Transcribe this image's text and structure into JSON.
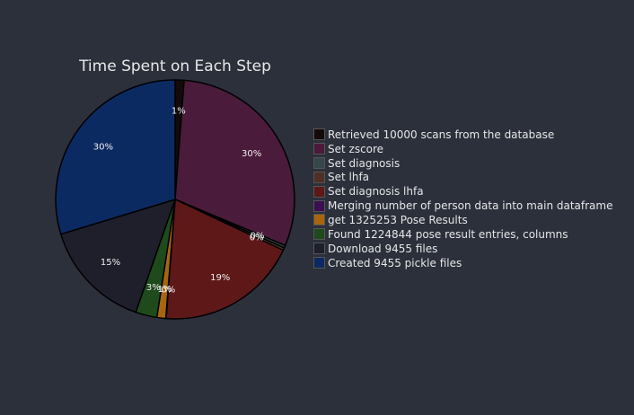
{
  "chart_data": {
    "type": "pie",
    "title": "Time Spent on Each Step",
    "slices": [
      {
        "label": "Retrieved 10000 scans from the database",
        "value": 1.2,
        "display": "1%",
        "color": "#140a0a"
      },
      {
        "label": "Set zscore",
        "value": 30.1,
        "display": "30%",
        "color": "#4a1b3a"
      },
      {
        "label": "Set diagnosis",
        "value": 0.35,
        "display": "0%",
        "color": "#34474a"
      },
      {
        "label": "Set lhfa",
        "value": 0.35,
        "display": "0%",
        "color": "#4e3025"
      },
      {
        "label": "Set diagnosis lhfa",
        "value": 19.2,
        "display": "19%",
        "color": "#5e1818"
      },
      {
        "label": "Merging number of person data into main dataframe",
        "value": 0.05,
        "display": "0%",
        "color": "#3c0f50"
      },
      {
        "label": "get 1325253 Pose Results",
        "value": 1.2,
        "display": "1%",
        "color": "#a8650f"
      },
      {
        "label": "Found 1224844 pose result entries, columns",
        "value": 2.9,
        "display": "3%",
        "color": "#1f4a1c"
      },
      {
        "label": "Download 9455 files",
        "value": 14.95,
        "display": "15%",
        "color": "#1e1f2b"
      },
      {
        "label": "Created 9455 pickle files",
        "value": 29.7,
        "display": "30%",
        "color": "#0c2a62"
      }
    ]
  }
}
